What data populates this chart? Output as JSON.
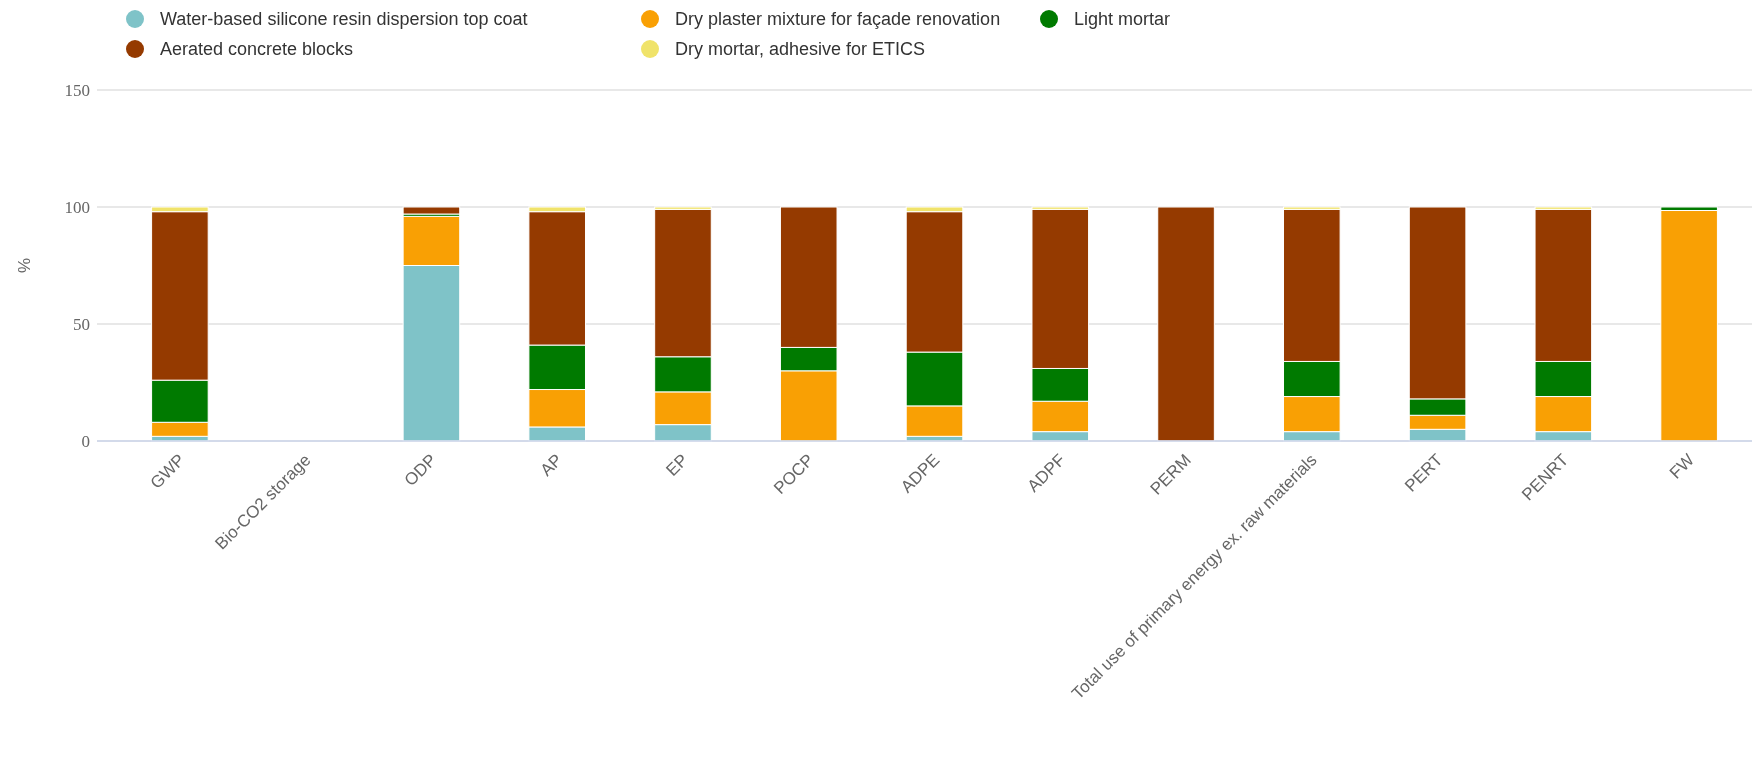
{
  "chart_data": {
    "type": "bar",
    "stacked": true,
    "ylabel": "%",
    "ylim": [
      0,
      150
    ],
    "yticks": [
      0,
      50,
      100,
      150
    ],
    "grid": "y",
    "legend": "top left",
    "categories": [
      "GWP",
      "Bio-CO2 storage",
      "ODP",
      "AP",
      "EP",
      "POCP",
      "ADPE",
      "ADPF",
      "PERM",
      "Total use of primary energy ex. raw materials",
      "PERT",
      "PENRT",
      "FW"
    ],
    "series": [
      {
        "name": "Water-based silicone resin dispersion top coat",
        "color": "#7fc3c8",
        "values": [
          2,
          null,
          75,
          6,
          7,
          0,
          2,
          4,
          0,
          4,
          5,
          4,
          0
        ]
      },
      {
        "name": "Dry plaster mixture for façade renovation",
        "color": "#f9a004",
        "values": [
          6,
          null,
          21,
          16,
          14,
          30,
          13,
          13,
          0,
          15,
          6,
          15,
          98.5
        ]
      },
      {
        "name": "Light mortar",
        "color": "#007a00",
        "values": [
          18,
          null,
          1,
          19,
          15,
          10,
          23,
          14,
          0,
          15,
          7,
          15,
          1.5
        ]
      },
      {
        "name": "Aerated concrete blocks",
        "color": "#953a00",
        "values": [
          72,
          null,
          3,
          57,
          63,
          60,
          60,
          68,
          100,
          65,
          82,
          65,
          0
        ]
      },
      {
        "name": "Dry mortar, adhesive for ETICS",
        "color": "#f0e36a",
        "values": [
          2,
          null,
          0,
          2,
          1,
          0,
          2,
          1,
          0,
          1,
          0,
          1,
          0
        ]
      }
    ]
  }
}
